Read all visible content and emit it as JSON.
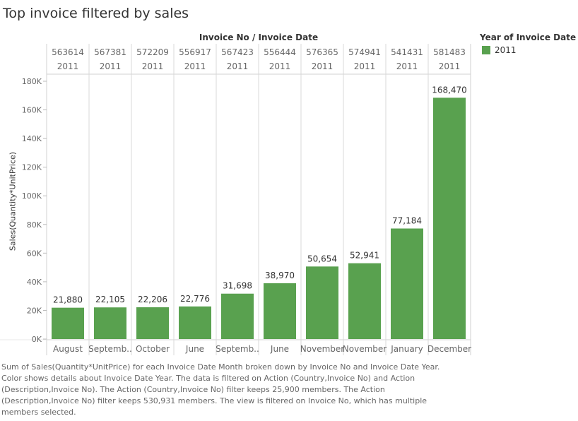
{
  "title": "Top invoice filtered by sales",
  "header_title": "Invoice No  /  Invoice Date",
  "legend": {
    "title": "Year of Invoice Date",
    "label": "2011",
    "color": "#59a14f"
  },
  "caption": "Sum of Sales(Quantity*UnitPrice) for each Invoice Date Month broken down by Invoice No and Invoice Date Year. Color shows details about Invoice Date Year. The data is filtered on Action (Country,Invoice No) and Action (Description,Invoice No). The Action (Country,Invoice No) filter keeps 25,900 members. The Action (Description,Invoice No) filter keeps 530,931 members. The view is filtered on Invoice No, which has multiple members selected.",
  "chart_data": {
    "type": "bar",
    "title": "Top invoice filtered by sales",
    "ylabel": "Sales(Quantity*UnitPrice)",
    "ylim": [
      0,
      180000
    ],
    "yticks": [
      0,
      20000,
      40000,
      60000,
      80000,
      100000,
      120000,
      140000,
      160000,
      180000
    ],
    "ytick_labels": [
      "0K",
      "20K",
      "40K",
      "60K",
      "80K",
      "100K",
      "120K",
      "140K",
      "160K",
      "180K"
    ],
    "invoices": [
      "563614",
      "567381",
      "572209",
      "556917",
      "567423",
      "556444",
      "576365",
      "574941",
      "541431",
      "581483"
    ],
    "years": [
      "2011",
      "2011",
      "2011",
      "2011",
      "2011",
      "2011",
      "2011",
      "2011",
      "2011",
      "2011"
    ],
    "categories": [
      "August",
      "Septemb..",
      "October",
      "June",
      "Septemb..",
      "June",
      "November",
      "November",
      "January",
      "December"
    ],
    "values": [
      21880,
      22105,
      22206,
      22776,
      31698,
      38970,
      50654,
      52941,
      77184,
      168470
    ],
    "value_labels": [
      "21,880",
      "22,105",
      "22,206",
      "22,776",
      "31,698",
      "38,970",
      "50,654",
      "52,941",
      "77,184",
      "168,470"
    ],
    "bar_color": "#59a14f",
    "grid": false
  }
}
